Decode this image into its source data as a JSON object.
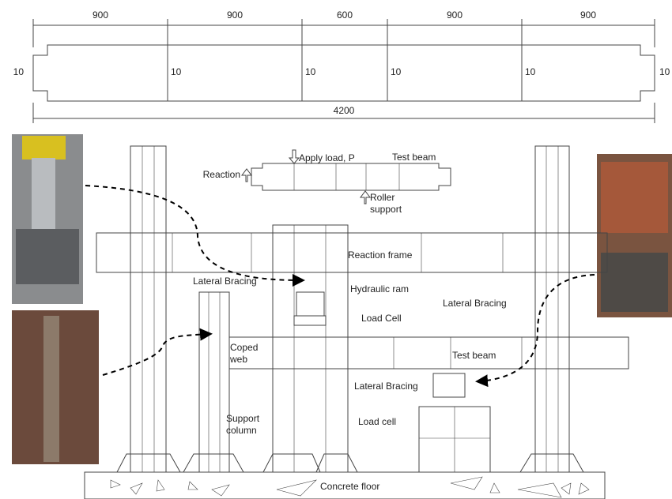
{
  "dimensions": {
    "segments": [
      900,
      900,
      600,
      900,
      900
    ],
    "end_heights": [
      10,
      10,
      10,
      10,
      10,
      10
    ],
    "total": 4200
  },
  "inset": {
    "apply_load": "Apply load, P",
    "test_beam": "Test beam",
    "reaction": "Reaction",
    "roller_support": [
      "Roller",
      "support"
    ]
  },
  "labels": {
    "reaction_frame": "Reaction frame",
    "lateral_bracing_left": "Lateral Bracing",
    "hydraulic_ram": "Hydraulic ram",
    "lateral_bracing_right": "Lateral Bracing",
    "load_cell_upper": "Load Cell",
    "coped_web": [
      "Coped",
      "web"
    ],
    "test_beam": "Test beam",
    "lateral_bracing_lower": "Lateral Bracing",
    "load_cell_lower": "Load cell",
    "support_column": [
      "Support",
      "column"
    ],
    "concrete_floor": "Concrete floor"
  }
}
